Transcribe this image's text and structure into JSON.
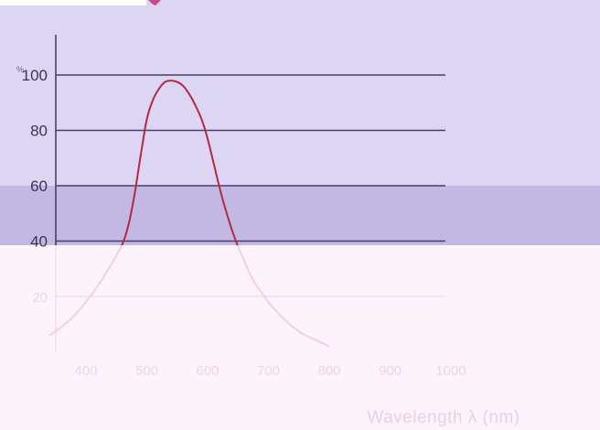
{
  "chart_data": {
    "type": "line",
    "xlabel": "Wavelength λ (nm)",
    "ylabel": "",
    "yunit": "%",
    "xlim": [
      350,
      1000
    ],
    "ylim": [
      0,
      115
    ],
    "x_ticks": [
      400,
      500,
      600,
      700,
      800,
      900,
      1000
    ],
    "y_ticks": [
      20,
      40,
      60,
      80,
      100
    ],
    "grid": true,
    "series": [
      {
        "x": [
          340,
          360,
          380,
          400,
          420,
          440,
          460,
          470,
          480,
          490,
          500,
          510,
          520,
          530,
          540,
          550,
          560,
          570,
          580,
          590,
          600,
          610,
          620,
          630,
          640,
          650,
          660,
          670,
          680,
          690,
          700,
          720,
          740,
          760,
          780,
          800
        ],
        "values": [
          6,
          9,
          13,
          18,
          24,
          31,
          39,
          46,
          57,
          71,
          84,
          91,
          95,
          97.5,
          98,
          97.5,
          96,
          93,
          89,
          84,
          77,
          68,
          59,
          51,
          44,
          38,
          33,
          28,
          24,
          21,
          18,
          13,
          9,
          6,
          4,
          2
        ]
      }
    ]
  },
  "colors": {
    "band_top": "#dcd5f4",
    "band_mid": "#c3b7e4",
    "band_bottom": "#fdf4fb",
    "curve": "#b22a44",
    "curve_faded": "#f6cde8"
  }
}
